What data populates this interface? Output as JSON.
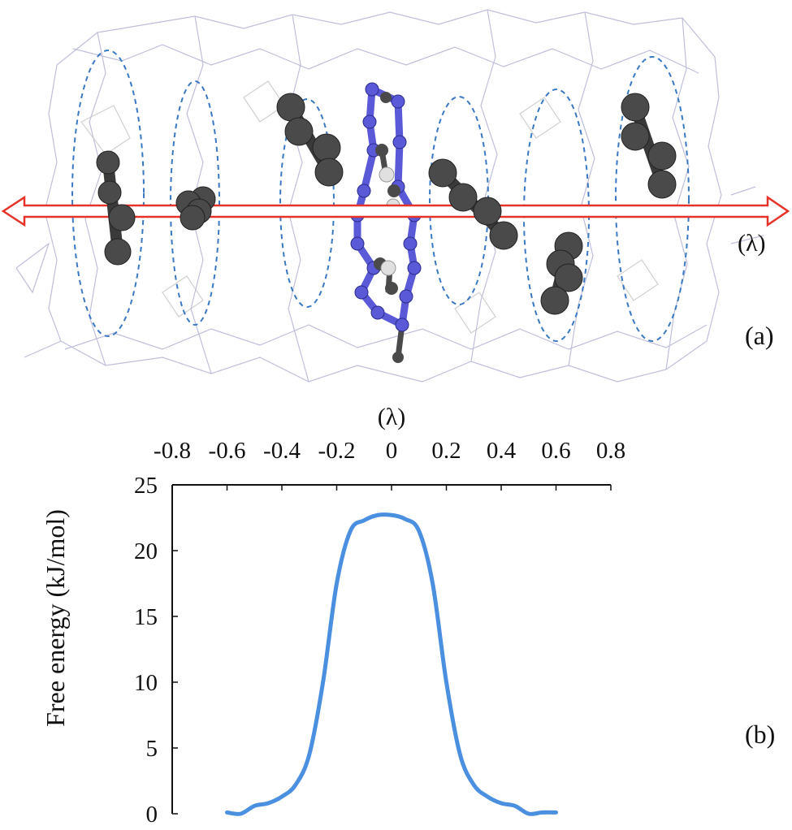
{
  "panel_labels": {
    "top": "(a)",
    "bottom": "(b)"
  },
  "lambda_label_right": "(λ)",
  "colors": {
    "axis_arrow": "#e5332a",
    "ring_dash": "#3a78c2",
    "atom_dark": "#4a4a4a",
    "atom_blue": "#5a5ad8",
    "atom_white": "#e0e0e0",
    "mesh": "#b8b8d8",
    "curve": "#4a8fe0"
  },
  "icons": {
    "molecule": "molecule-illustration",
    "arrow": "double-arrow-icon"
  },
  "chart_data": {
    "type": "line",
    "xlabel": "(λ)",
    "ylabel": "Free energy (kJ/mol)",
    "x_ticks": [
      "-0.8",
      "-0.6",
      "-0.4",
      "-0.2",
      "0",
      "0.2",
      "0.4",
      "0.6",
      "0.8"
    ],
    "y_ticks": [
      "0",
      "5",
      "10",
      "15",
      "20",
      "25"
    ],
    "xlim": [
      -0.8,
      0.8
    ],
    "ylim": [
      0,
      25
    ],
    "x_axis_position": "top",
    "grid": false,
    "series": [
      {
        "x": [
          -0.6,
          -0.55,
          -0.5,
          -0.45,
          -0.4,
          -0.35,
          -0.3,
          -0.25,
          -0.2,
          -0.15,
          -0.1,
          -0.05,
          0,
          0.05,
          0.1,
          0.15,
          0.2,
          0.25,
          0.3,
          0.35,
          0.4,
          0.45,
          0.5,
          0.55,
          0.6
        ],
        "values": [
          0.1,
          0.0,
          0.6,
          0.8,
          1.3,
          2.2,
          4.5,
          10.0,
          17.5,
          21.5,
          22.3,
          22.7,
          22.7,
          22.4,
          21.5,
          17.5,
          10.0,
          4.5,
          2.2,
          1.3,
          0.8,
          0.6,
          0.0,
          0.1,
          0.1
        ]
      }
    ]
  }
}
